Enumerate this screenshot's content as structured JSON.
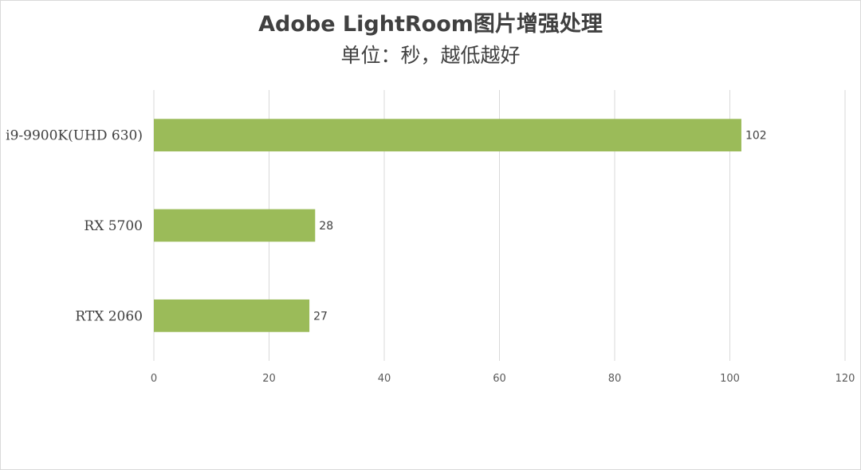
{
  "chart_data": {
    "type": "bar",
    "orientation": "horizontal",
    "title": "Adobe LightRoom图片增强处理",
    "subtitle": "单位：秒，越低越好",
    "categories": [
      "i9-9900K(UHD 630)",
      "RX 5700",
      "RTX 2060"
    ],
    "values": [
      102,
      28,
      27
    ],
    "xlim": [
      0,
      120
    ],
    "xticks": [
      0,
      20,
      40,
      60,
      80,
      100,
      120
    ],
    "grid": true,
    "bar_color": "#9bbb59",
    "data_labels": true
  }
}
